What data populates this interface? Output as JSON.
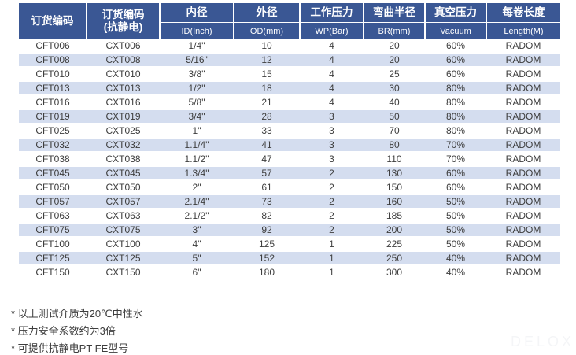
{
  "colors": {
    "header_bg": "#3A5794",
    "header_text": "#FFFFFF",
    "stripe_bg": "#D4DDEF",
    "body_text": "#3D3D3D",
    "watermark_text": "#F4F5F7"
  },
  "table": {
    "columns": [
      {
        "zh": "订货编码",
        "zh2": "",
        "en": ""
      },
      {
        "zh": "订货编码",
        "zh2": "(抗静电)",
        "en": ""
      },
      {
        "zh": "内径",
        "zh2": "",
        "en": "ID(Inch)"
      },
      {
        "zh": "外径",
        "zh2": "",
        "en": "OD(mm)"
      },
      {
        "zh": "工作压力",
        "zh2": "",
        "en": "WP(Bar)"
      },
      {
        "zh": "弯曲半径",
        "zh2": "",
        "en": "BR(mm)"
      },
      {
        "zh": "真空压力",
        "zh2": "",
        "en": "Vacuum"
      },
      {
        "zh": "每卷长度",
        "zh2": "",
        "en": "Length(M)"
      }
    ],
    "rows": [
      [
        "CFT006",
        "CXT006",
        "1/4\"",
        "10",
        "4",
        "20",
        "60%",
        "RADOM"
      ],
      [
        "CFT008",
        "CXT008",
        "5/16\"",
        "12",
        "4",
        "20",
        "60%",
        "RADOM"
      ],
      [
        "CFT010",
        "CXT010",
        "3/8\"",
        "15",
        "4",
        "25",
        "60%",
        "RADOM"
      ],
      [
        "CFT013",
        "CXT013",
        "1/2\"",
        "18",
        "4",
        "30",
        "80%",
        "RADOM"
      ],
      [
        "CFT016",
        "CXT016",
        "5/8\"",
        "21",
        "4",
        "40",
        "80%",
        "RADOM"
      ],
      [
        "CFT019",
        "CXT019",
        "3/4\"",
        "28",
        "3",
        "50",
        "80%",
        "RADOM"
      ],
      [
        "CFT025",
        "CXT025",
        "1\"",
        "33",
        "3",
        "70",
        "80%",
        "RADOM"
      ],
      [
        "CFT032",
        "CXT032",
        "1.1/4\"",
        "41",
        "3",
        "80",
        "70%",
        "RADOM"
      ],
      [
        "CFT038",
        "CXT038",
        "1.1/2\"",
        "47",
        "3",
        "110",
        "70%",
        "RADOM"
      ],
      [
        "CFT045",
        "CXT045",
        "1.3/4\"",
        "57",
        "2",
        "130",
        "60%",
        "RADOM"
      ],
      [
        "CFT050",
        "CXT050",
        "2\"",
        "61",
        "2",
        "150",
        "60%",
        "RADOM"
      ],
      [
        "CFT057",
        "CXT057",
        "2.1/4\"",
        "73",
        "2",
        "160",
        "50%",
        "RADOM"
      ],
      [
        "CFT063",
        "CXT063",
        "2.1/2\"",
        "82",
        "2",
        "185",
        "50%",
        "RADOM"
      ],
      [
        "CFT075",
        "CXT075",
        "3\"",
        "92",
        "2",
        "200",
        "50%",
        "RADOM"
      ],
      [
        "CFT100",
        "CXT100",
        "4\"",
        "125",
        "1",
        "225",
        "50%",
        "RADOM"
      ],
      [
        "CFT125",
        "CXT125",
        "5\"",
        "152",
        "1",
        "250",
        "40%",
        "RADOM"
      ],
      [
        "CFT150",
        "CXT150",
        "6\"",
        "180",
        "1",
        "300",
        "40%",
        "RADOM"
      ]
    ]
  },
  "notes": [
    "* 以上测试介质为20℃中性水",
    "* 压力安全系数约为3倍",
    "* 可提供抗静电PT FE型号"
  ],
  "watermark": "DELOX"
}
